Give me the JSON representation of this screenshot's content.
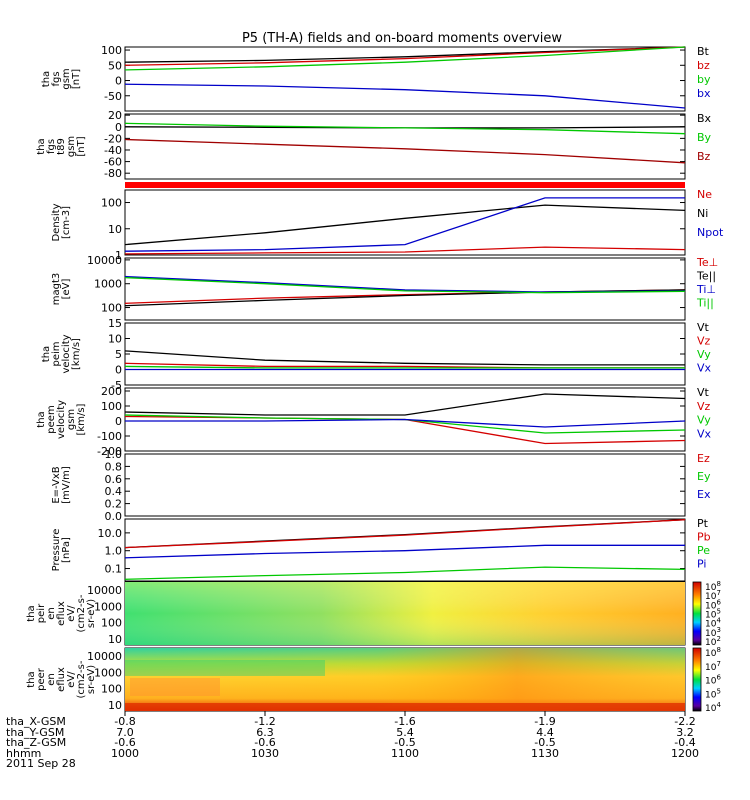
{
  "title": "P5 (TH-A) fields and on-board moments overview",
  "chart_data": [
    {
      "type": "line",
      "panel": "fgs_gsm",
      "ylabel": [
        "tha",
        "fgs",
        "gsm",
        "[nT]"
      ],
      "ylim": [
        -100,
        110
      ],
      "yticks": [
        100,
        50,
        0,
        -50
      ],
      "x": [
        1000,
        1030,
        1100,
        1130,
        1200
      ],
      "series": [
        {
          "name": "Bt",
          "color": "#000000",
          "values": [
            60,
            66,
            78,
            95,
            110
          ]
        },
        {
          "name": "bz",
          "color": "#d40000",
          "values": [
            50,
            58,
            72,
            92,
            110
          ]
        },
        {
          "name": "by",
          "color": "#00c800",
          "values": [
            35,
            45,
            60,
            82,
            112
          ]
        },
        {
          "name": "bx",
          "color": "#0000c8",
          "values": [
            -12,
            -18,
            -30,
            -50,
            -90
          ]
        }
      ]
    },
    {
      "type": "line",
      "panel": "fgs_t89",
      "ylabel": [
        "tha",
        "fgs",
        "t89",
        "gsm",
        "[nT]"
      ],
      "ylim": [
        -90,
        22
      ],
      "yticks": [
        20,
        0,
        -20,
        -40,
        -60,
        -80
      ],
      "x": [
        1000,
        1030,
        1100,
        1130,
        1200
      ],
      "series": [
        {
          "name": "Bx",
          "color": "#000000",
          "values": [
            0,
            -1,
            -2,
            -2,
            0
          ]
        },
        {
          "name": "By",
          "color": "#00c800",
          "values": [
            6,
            1,
            -2,
            -5,
            -12
          ]
        },
        {
          "name": "Bz",
          "color": "#a00000",
          "values": [
            -22,
            -30,
            -38,
            -48,
            -62
          ]
        }
      ]
    },
    {
      "type": "line",
      "panel": "density",
      "ylabel": [
        "Density",
        "[cm-3]"
      ],
      "yscale": "log",
      "ylim": [
        1,
        300
      ],
      "yticks": [
        "100",
        "10",
        "1"
      ],
      "x": [
        1000,
        1030,
        1100,
        1130,
        1200
      ],
      "series": [
        {
          "name": "Ne",
          "color": "#d40000",
          "values": [
            1.1,
            1.2,
            1.3,
            2.0,
            1.6
          ]
        },
        {
          "name": "Ni",
          "color": "#000000",
          "values": [
            2.5,
            7,
            25,
            80,
            50
          ]
        },
        {
          "name": "Npot",
          "color": "#0000c8",
          "values": [
            1.4,
            1.6,
            2.5,
            150,
            150
          ]
        }
      ]
    },
    {
      "type": "line",
      "panel": "temperature",
      "ylabel": [
        "magt3",
        "[eV]"
      ],
      "yscale": "log",
      "ylim": [
        30,
        12000
      ],
      "yticks": [
        "10000",
        "1000",
        "100"
      ],
      "x": [
        1000,
        1030,
        1100,
        1130,
        1200
      ],
      "series": [
        {
          "name": "Te⊥",
          "color": "#d40000",
          "values": [
            150,
            250,
            350,
            450,
            550
          ]
        },
        {
          "name": "Te||",
          "color": "#000000",
          "values": [
            120,
            200,
            320,
            450,
            550
          ]
        },
        {
          "name": "Ti⊥",
          "color": "#0000c8",
          "values": [
            2000,
            1100,
            550,
            450,
            500
          ]
        },
        {
          "name": "Ti||",
          "color": "#00c800",
          "values": [
            1800,
            1000,
            500,
            420,
            480
          ]
        }
      ]
    },
    {
      "type": "line",
      "panel": "peim_velocity",
      "ylabel": [
        "tha",
        "peim",
        "velocity",
        "[km/s]"
      ],
      "ylim": [
        -5,
        15
      ],
      "yticks": [
        15,
        10,
        5,
        0,
        -5
      ],
      "x": [
        1000,
        1030,
        1100,
        1130,
        1200
      ],
      "series": [
        {
          "name": "Vt",
          "color": "#000000",
          "values": [
            6,
            3,
            2,
            1.5,
            1.5
          ]
        },
        {
          "name": "Vz",
          "color": "#d40000",
          "values": [
            2,
            1,
            1,
            0.5,
            0.5
          ]
        },
        {
          "name": "Vy",
          "color": "#00c800",
          "values": [
            1,
            0.5,
            0.5,
            0.5,
            0.5
          ]
        },
        {
          "name": "Vx",
          "color": "#0000c8",
          "values": [
            0,
            0,
            0,
            0,
            0
          ]
        }
      ]
    },
    {
      "type": "line",
      "panel": "peem_velocity",
      "ylabel": [
        "tha",
        "peem",
        "velocity",
        "gsm",
        "[km/s]"
      ],
      "ylim": [
        -200,
        220
      ],
      "yticks": [
        200,
        100,
        0,
        -100,
        -200
      ],
      "x": [
        1000,
        1030,
        1100,
        1130,
        1200
      ],
      "series": [
        {
          "name": "Vt",
          "color": "#000000",
          "values": [
            60,
            40,
            40,
            180,
            150
          ]
        },
        {
          "name": "Vz",
          "color": "#d40000",
          "values": [
            30,
            20,
            10,
            -150,
            -130
          ]
        },
        {
          "name": "Vy",
          "color": "#00c800",
          "values": [
            40,
            20,
            10,
            -80,
            -60
          ]
        },
        {
          "name": "Vx",
          "color": "#0000c8",
          "values": [
            0,
            0,
            10,
            -40,
            0
          ]
        }
      ]
    },
    {
      "type": "line",
      "panel": "efield",
      "ylabel": [
        "E=-VxB",
        "[mV/m]"
      ],
      "ylim": [
        0,
        1.0
      ],
      "yticks": [
        "1.0",
        "0.8",
        "0.6",
        "0.4",
        "0.2",
        "0.0"
      ],
      "series": [
        {
          "name": "Ez",
          "color": "#d40000",
          "values": []
        },
        {
          "name": "Ey",
          "color": "#00c800",
          "values": []
        },
        {
          "name": "Ex",
          "color": "#0000c8",
          "values": []
        }
      ]
    },
    {
      "type": "line",
      "panel": "pressure",
      "ylabel": [
        "Pressure",
        "[nPa]"
      ],
      "yscale": "log",
      "ylim": [
        0.02,
        60
      ],
      "yticks": [
        "10.0",
        "1.0",
        "0.1"
      ],
      "x": [
        1000,
        1030,
        1100,
        1130,
        1200
      ],
      "series": [
        {
          "name": "Pt",
          "color": "#000000",
          "values": [
            1.5,
            3.5,
            8,
            22,
            55
          ]
        },
        {
          "name": "Pb",
          "color": "#d40000",
          "values": [
            1.5,
            3.3,
            7.5,
            21,
            55
          ]
        },
        {
          "name": "Pe",
          "color": "#00c800",
          "values": [
            0.025,
            0.04,
            0.06,
            0.12,
            0.09
          ]
        },
        {
          "name": "Pi",
          "color": "#0000c8",
          "values": [
            0.4,
            0.7,
            1.0,
            2.0,
            2.0
          ]
        }
      ]
    },
    {
      "type": "heatmap",
      "panel": "peir_en_eflux",
      "ylabel": [
        "tha",
        "peir",
        "en",
        "eflux",
        "eV/",
        "(cm2-s-",
        "sr-eV)"
      ],
      "yscale": "log",
      "yticks": [
        "10000",
        "1000",
        "100",
        "10"
      ],
      "colorbar_ticks": [
        "10^8",
        "10^7",
        "10^6",
        "10^5",
        "10^4",
        "10^3",
        "10^2"
      ]
    },
    {
      "type": "heatmap",
      "panel": "peer_en_eflux",
      "ylabel": [
        "tha",
        "peer",
        "en",
        "eflux",
        "eV/",
        "(cm2-s-",
        "sr-eV)"
      ],
      "yscale": "log",
      "yticks": [
        "10000",
        "1000",
        "100",
        "10"
      ],
      "colorbar_ticks": [
        "10^8",
        "10^7",
        "10^6",
        "10^5",
        "10^4"
      ]
    }
  ],
  "x_axis": {
    "row_labels": [
      "tha_X-GSM",
      "tha_Y-GSM",
      "tha_Z-GSM",
      "hhmm",
      "2011 Sep 28"
    ],
    "columns": [
      {
        "values": [
          "-0.8",
          "7.0",
          "-0.6",
          "1000"
        ]
      },
      {
        "values": [
          "-1.2",
          "6.3",
          "-0.6",
          "1030"
        ]
      },
      {
        "values": [
          "-1.6",
          "5.4",
          "-0.5",
          "1100"
        ]
      },
      {
        "values": [
          "-1.9",
          "4.4",
          "-0.5",
          "1130"
        ]
      },
      {
        "values": [
          "-2.2",
          "3.2",
          "-0.4",
          "1200"
        ]
      }
    ]
  }
}
